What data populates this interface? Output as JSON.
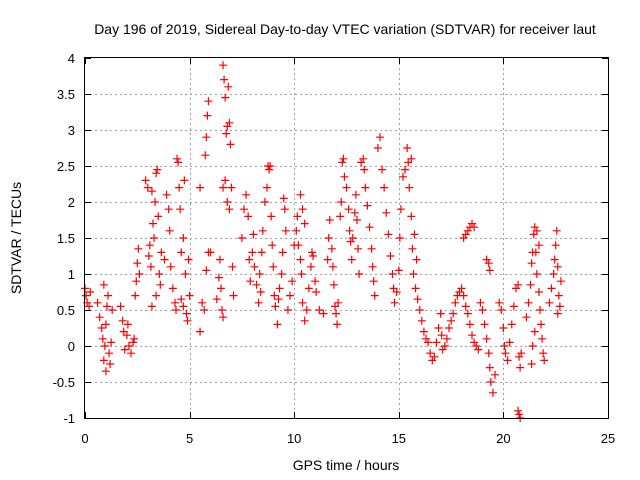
{
  "chart_data": {
    "type": "scatter",
    "title": "Day 196 of 2019, Sidereal Day-to-day VTEC variation (SDTVAR) for receiver laut",
    "xlabel": "GPS time / hours",
    "ylabel": "SDTVAR / TECUs",
    "xlim": [
      0,
      25
    ],
    "ylim": [
      -1,
      4
    ],
    "xticks": [
      0,
      5,
      10,
      15,
      20,
      25
    ],
    "xtick_labels": [
      "0",
      "5",
      "10",
      "15",
      "20",
      "25"
    ],
    "yticks": [
      -1,
      -0.5,
      0,
      0.5,
      1,
      1.5,
      2,
      2.5,
      3,
      3.5,
      4
    ],
    "ytick_labels": [
      "-1",
      "-0.5",
      "0",
      "0.5",
      "1",
      "1.5",
      "2",
      "2.5",
      "3",
      "3.5",
      "4"
    ],
    "grid": true,
    "marker": "+",
    "series": [
      {
        "name": "SDTVAR",
        "color": "#ff0000",
        "points": [
          [
            0.0,
            0.8
          ],
          [
            0.05,
            0.7
          ],
          [
            0.1,
            0.6
          ],
          [
            0.2,
            0.55
          ],
          [
            0.25,
            0.75
          ],
          [
            0.6,
            0.6
          ],
          [
            0.7,
            0.4
          ],
          [
            0.8,
            0.25
          ],
          [
            0.85,
            0.1
          ],
          [
            0.9,
            -0.2
          ],
          [
            0.95,
            0.0
          ],
          [
            1.0,
            0.3
          ],
          [
            1.05,
            0.55
          ],
          [
            1.1,
            0.7
          ],
          [
            1.15,
            -0.1
          ],
          [
            1.2,
            -0.25
          ],
          [
            1.25,
            0.05
          ],
          [
            1.3,
            0.5
          ],
          [
            1.0,
            -0.35
          ],
          [
            0.9,
            0.85
          ],
          [
            1.7,
            0.55
          ],
          [
            1.8,
            0.35
          ],
          [
            1.85,
            0.2
          ],
          [
            1.9,
            -0.05
          ],
          [
            2.0,
            0.15
          ],
          [
            2.05,
            0.3
          ],
          [
            2.1,
            0.0
          ],
          [
            2.2,
            -0.1
          ],
          [
            2.3,
            0.05
          ],
          [
            2.35,
            0.1
          ],
          [
            2.4,
            0.7
          ],
          [
            2.45,
            0.9
          ],
          [
            2.5,
            1.15
          ],
          [
            2.55,
            1.35
          ],
          [
            2.6,
            1.0
          ],
          [
            2.9,
            2.3
          ],
          [
            3.0,
            2.2
          ],
          [
            3.05,
            1.25
          ],
          [
            3.1,
            1.4
          ],
          [
            3.15,
            1.1
          ],
          [
            3.2,
            2.15
          ],
          [
            3.25,
            1.7
          ],
          [
            3.3,
            1.5
          ],
          [
            3.35,
            2.0
          ],
          [
            3.4,
            2.4
          ],
          [
            3.45,
            2.45
          ],
          [
            3.5,
            1.8
          ],
          [
            3.55,
            1.0
          ],
          [
            3.6,
            0.85
          ],
          [
            3.65,
            1.3
          ],
          [
            3.2,
            0.55
          ],
          [
            3.4,
            0.7
          ],
          [
            3.8,
            1.2
          ],
          [
            3.9,
            2.1
          ],
          [
            4.0,
            1.9
          ],
          [
            4.05,
            1.6
          ],
          [
            4.1,
            1.1
          ],
          [
            4.2,
            0.8
          ],
          [
            4.3,
            0.6
          ],
          [
            4.35,
            0.5
          ],
          [
            4.4,
            2.6
          ],
          [
            4.45,
            2.55
          ],
          [
            4.5,
            2.2
          ],
          [
            4.55,
            1.9
          ],
          [
            4.6,
            1.3
          ],
          [
            4.7,
            1.5
          ],
          [
            4.8,
            1.0
          ],
          [
            4.85,
            0.45
          ],
          [
            4.9,
            0.35
          ],
          [
            4.95,
            1.2
          ],
          [
            5.0,
            0.7
          ],
          [
            4.6,
            0.65
          ],
          [
            4.7,
            0.55
          ],
          [
            4.75,
            2.3
          ],
          [
            5.5,
            0.2
          ],
          [
            5.6,
            0.6
          ],
          [
            5.7,
            0.5
          ],
          [
            5.8,
            1.05
          ],
          [
            5.9,
            1.3
          ],
          [
            6.0,
            1.3
          ],
          [
            5.75,
            2.65
          ],
          [
            5.8,
            2.9
          ],
          [
            5.9,
            3.4
          ],
          [
            5.85,
            3.2
          ],
          [
            5.5,
            2.2
          ],
          [
            6.3,
            0.65
          ],
          [
            6.4,
            0.95
          ],
          [
            6.45,
            1.2
          ],
          [
            6.5,
            0.8
          ],
          [
            6.55,
            0.5
          ],
          [
            6.6,
            3.9
          ],
          [
            6.65,
            3.7
          ],
          [
            6.7,
            3.45
          ],
          [
            6.75,
            2.95
          ],
          [
            6.8,
            3.05
          ],
          [
            6.85,
            3.6
          ],
          [
            6.9,
            3.1
          ],
          [
            6.95,
            2.8
          ],
          [
            7.0,
            2.2
          ],
          [
            6.7,
            2.3
          ],
          [
            6.8,
            2.0
          ],
          [
            6.6,
            2.2
          ],
          [
            6.9,
            1.9
          ],
          [
            7.05,
            1.1
          ],
          [
            7.1,
            0.7
          ],
          [
            6.6,
            0.4
          ],
          [
            7.5,
            1.5
          ],
          [
            7.6,
            1.9
          ],
          [
            7.7,
            2.1
          ],
          [
            7.8,
            1.8
          ],
          [
            7.85,
            1.2
          ],
          [
            7.9,
            0.9
          ],
          [
            8.0,
            1.3
          ],
          [
            8.05,
            1.55
          ],
          [
            8.1,
            1.1
          ],
          [
            8.2,
            0.85
          ],
          [
            8.3,
            0.6
          ],
          [
            8.35,
            1.0
          ],
          [
            8.4,
            0.75
          ],
          [
            8.45,
            1.3
          ],
          [
            8.5,
            1.6
          ],
          [
            8.6,
            2.0
          ],
          [
            8.7,
            2.2
          ],
          [
            8.75,
            2.5
          ],
          [
            8.8,
            2.45
          ],
          [
            8.85,
            2.5
          ],
          [
            8.9,
            1.8
          ],
          [
            8.95,
            1.4
          ],
          [
            9.0,
            1.1
          ],
          [
            9.05,
            0.7
          ],
          [
            9.1,
            0.55
          ],
          [
            9.2,
            0.3
          ],
          [
            9.25,
            0.65
          ],
          [
            9.3,
            0.8
          ],
          [
            9.4,
            1.0
          ],
          [
            9.45,
            1.3
          ],
          [
            9.5,
            2.05
          ],
          [
            9.55,
            1.9
          ],
          [
            9.6,
            1.6
          ],
          [
            9.7,
            0.5
          ],
          [
            9.8,
            0.7
          ],
          [
            9.9,
            0.9
          ],
          [
            10.0,
            1.4
          ],
          [
            10.1,
            1.6
          ],
          [
            10.15,
            1.8
          ],
          [
            10.2,
            1.4
          ],
          [
            10.3,
            1.2
          ],
          [
            10.35,
            1.0
          ],
          [
            10.4,
            0.6
          ],
          [
            10.5,
            0.35
          ],
          [
            10.6,
            0.5
          ],
          [
            10.7,
            0.8
          ],
          [
            10.8,
            1.1
          ],
          [
            10.85,
            1.3
          ],
          [
            10.9,
            1.25
          ],
          [
            11.0,
            0.9
          ],
          [
            11.05,
            0.75
          ],
          [
            10.3,
            2.1
          ],
          [
            10.4,
            1.9
          ],
          [
            10.5,
            1.7
          ],
          [
            11.2,
            0.5
          ],
          [
            11.4,
            0.45
          ],
          [
            11.6,
            1.2
          ],
          [
            11.65,
            1.5
          ],
          [
            11.7,
            1.75
          ],
          [
            11.8,
            1.35
          ],
          [
            11.85,
            1.1
          ],
          [
            11.9,
            0.85
          ],
          [
            11.95,
            0.55
          ],
          [
            12.0,
            0.45
          ],
          [
            12.05,
            0.3
          ],
          [
            12.1,
            0.6
          ],
          [
            12.2,
            1.8
          ],
          [
            12.25,
            2.0
          ],
          [
            12.3,
            2.55
          ],
          [
            12.35,
            2.6
          ],
          [
            12.4,
            2.35
          ],
          [
            12.5,
            2.2
          ],
          [
            12.6,
            1.9
          ],
          [
            12.65,
            1.6
          ],
          [
            12.7,
            1.45
          ],
          [
            12.75,
            1.2
          ],
          [
            12.8,
            1.5
          ],
          [
            12.9,
            1.85
          ],
          [
            12.95,
            2.1
          ],
          [
            13.0,
            1.75
          ],
          [
            13.05,
            1.35
          ],
          [
            13.1,
            1.0
          ],
          [
            13.2,
            2.55
          ],
          [
            13.3,
            2.6
          ],
          [
            13.35,
            2.45
          ],
          [
            13.4,
            2.2
          ],
          [
            13.5,
            1.95
          ],
          [
            13.6,
            1.65
          ],
          [
            13.7,
            1.35
          ],
          [
            13.75,
            1.1
          ],
          [
            13.8,
            0.9
          ],
          [
            13.85,
            0.7
          ],
          [
            14.0,
            2.75
          ],
          [
            14.1,
            2.9
          ],
          [
            14.2,
            2.45
          ],
          [
            14.3,
            2.2
          ],
          [
            14.4,
            1.85
          ],
          [
            14.5,
            1.55
          ],
          [
            14.6,
            1.25
          ],
          [
            14.7,
            1.0
          ],
          [
            14.75,
            0.8
          ],
          [
            14.8,
            0.6
          ],
          [
            14.9,
            0.75
          ],
          [
            15.0,
            1.05
          ],
          [
            15.05,
            1.5
          ],
          [
            15.1,
            1.9
          ],
          [
            15.2,
            2.35
          ],
          [
            15.3,
            2.45
          ],
          [
            15.4,
            2.75
          ],
          [
            15.45,
            2.55
          ],
          [
            15.5,
            2.2
          ],
          [
            15.6,
            1.8
          ],
          [
            15.65,
            1.35
          ],
          [
            15.7,
            1.0
          ],
          [
            15.8,
            0.8
          ],
          [
            15.9,
            0.65
          ],
          [
            16.0,
            0.5
          ],
          [
            15.75,
            1.55
          ],
          [
            15.85,
            1.2
          ],
          [
            15.6,
            2.6
          ],
          [
            16.1,
            0.35
          ],
          [
            16.2,
            0.2
          ],
          [
            16.3,
            0.1
          ],
          [
            16.4,
            0.05
          ],
          [
            16.5,
            -0.1
          ],
          [
            16.6,
            -0.2
          ],
          [
            16.7,
            -0.15
          ],
          [
            16.8,
            0.05
          ],
          [
            16.9,
            0.25
          ],
          [
            17.0,
            0.45
          ],
          [
            17.05,
            0.15
          ],
          [
            17.1,
            -0.05
          ],
          [
            17.2,
            0.0
          ],
          [
            17.3,
            0.1
          ],
          [
            17.4,
            0.25
          ],
          [
            17.5,
            0.35
          ],
          [
            17.6,
            0.45
          ],
          [
            17.7,
            0.6
          ],
          [
            17.8,
            0.7
          ],
          [
            17.9,
            0.75
          ],
          [
            18.0,
            0.8
          ],
          [
            18.1,
            0.7
          ],
          [
            18.2,
            0.55
          ],
          [
            18.3,
            0.45
          ],
          [
            18.4,
            0.3
          ],
          [
            18.5,
            0.15
          ],
          [
            18.6,
            0.05
          ],
          [
            18.7,
            0.0
          ],
          [
            18.8,
            -0.05
          ],
          [
            18.1,
            1.5
          ],
          [
            18.2,
            1.55
          ],
          [
            18.3,
            1.6
          ],
          [
            18.4,
            1.65
          ],
          [
            18.5,
            1.7
          ],
          [
            18.6,
            1.65
          ],
          [
            18.9,
            0.6
          ],
          [
            19.0,
            0.5
          ],
          [
            19.1,
            0.3
          ],
          [
            19.2,
            0.1
          ],
          [
            19.3,
            -0.1
          ],
          [
            19.35,
            -0.3
          ],
          [
            19.4,
            -0.5
          ],
          [
            19.5,
            -0.65
          ],
          [
            19.6,
            -0.4
          ],
          [
            19.2,
            1.2
          ],
          [
            19.3,
            1.15
          ],
          [
            19.35,
            1.05
          ],
          [
            19.8,
            0.6
          ],
          [
            19.9,
            0.5
          ],
          [
            20.0,
            0.25
          ],
          [
            20.05,
            0.0
          ],
          [
            20.1,
            -0.1
          ],
          [
            20.2,
            -0.2
          ],
          [
            20.3,
            0.05
          ],
          [
            20.4,
            0.3
          ],
          [
            20.5,
            0.55
          ],
          [
            20.6,
            0.8
          ],
          [
            20.7,
            0.85
          ],
          [
            20.75,
            -0.15
          ],
          [
            20.8,
            -0.3
          ],
          [
            20.85,
            -0.1
          ],
          [
            20.7,
            -0.9
          ],
          [
            20.8,
            -1.0
          ],
          [
            20.75,
            -0.95
          ],
          [
            21.1,
            0.4
          ],
          [
            21.2,
            0.6
          ],
          [
            21.3,
            0.85
          ],
          [
            21.35,
            1.15
          ],
          [
            21.4,
            1.3
          ],
          [
            21.45,
            1.55
          ],
          [
            21.5,
            1.65
          ],
          [
            21.55,
            1.3
          ],
          [
            21.6,
            1.0
          ],
          [
            21.7,
            0.75
          ],
          [
            21.75,
            0.5
          ],
          [
            21.8,
            0.3
          ],
          [
            21.85,
            0.1
          ],
          [
            21.9,
            -0.1
          ],
          [
            21.95,
            -0.2
          ],
          [
            21.35,
            -0.25
          ],
          [
            21.4,
            0.0
          ],
          [
            21.5,
            0.2
          ],
          [
            21.6,
            1.6
          ],
          [
            21.7,
            1.4
          ],
          [
            22.2,
            0.6
          ],
          [
            22.3,
            0.8
          ],
          [
            22.4,
            1.0
          ],
          [
            22.45,
            1.2
          ],
          [
            22.5,
            1.4
          ],
          [
            22.55,
            1.6
          ],
          [
            22.6,
            1.1
          ],
          [
            22.65,
            0.7
          ],
          [
            22.7,
            0.55
          ],
          [
            22.75,
            0.9
          ],
          [
            22.6,
            0.45
          ]
        ]
      }
    ]
  }
}
